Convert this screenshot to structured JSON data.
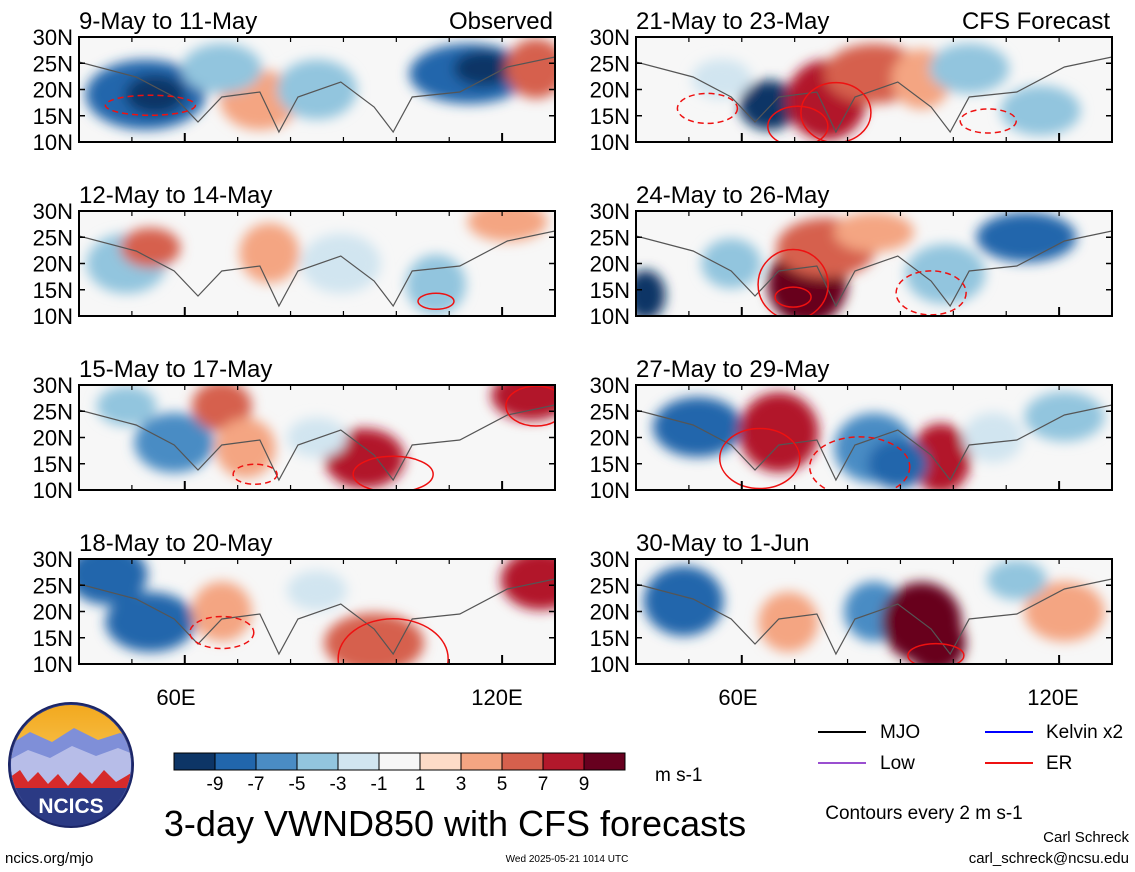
{
  "chart_data": {
    "type": "heatmap",
    "title": "3-day VWND850 with CFS forecasts",
    "units": "m s-1",
    "contour_note": "Contours every 2 m s-1",
    "lat_ticks": [
      "30N",
      "25N",
      "20N",
      "15N",
      "10N"
    ],
    "lon_ticks": [
      "60E",
      "120E"
    ],
    "lon_tick_values": [
      60,
      120
    ],
    "lon_range": [
      40,
      130
    ],
    "lat_range": [
      10,
      30
    ],
    "column_headers": {
      "left": "Observed",
      "right": "CFS Forecast"
    },
    "panels": [
      {
        "label": "9-May to 11-May",
        "column": "left",
        "row": 0
      },
      {
        "label": "12-May to 14-May",
        "column": "left",
        "row": 1
      },
      {
        "label": "15-May to 17-May",
        "column": "left",
        "row": 2
      },
      {
        "label": "18-May to 20-May",
        "column": "left",
        "row": 3
      },
      {
        "label": "21-May to 23-May",
        "column": "right",
        "row": 0
      },
      {
        "label": "24-May to 26-May",
        "column": "right",
        "row": 1
      },
      {
        "label": "27-May to 29-May",
        "column": "right",
        "row": 2
      },
      {
        "label": "30-May to 1-Jun",
        "column": "right",
        "row": 3
      }
    ],
    "colorbar": {
      "tick_labels": [
        "-9",
        "-7",
        "-5",
        "-3",
        "-1",
        "1",
        "3",
        "5",
        "7",
        "9"
      ],
      "colors": [
        "#0d3566",
        "#2166ac",
        "#4a8cc4",
        "#92c5de",
        "#d1e5f0",
        "#f7f7f7",
        "#fddbc7",
        "#f4a582",
        "#d6604d",
        "#b2182b",
        "#67001f"
      ]
    },
    "legend": [
      {
        "label": "MJO",
        "color": "#000000"
      },
      {
        "label": "Kelvin x2",
        "color": "#0000ff"
      },
      {
        "label": "Low",
        "color": "#9a4fd0"
      },
      {
        "label": "ER",
        "color": "#ee1111"
      }
    ]
  },
  "footer": {
    "logo_text": "NCICS",
    "url": "ncics.org/mjo",
    "timestamp": "Wed 2025-05-21 1014 UTC",
    "author": "Carl Schreck",
    "email": "carl_schreck@ncsu.edu"
  }
}
